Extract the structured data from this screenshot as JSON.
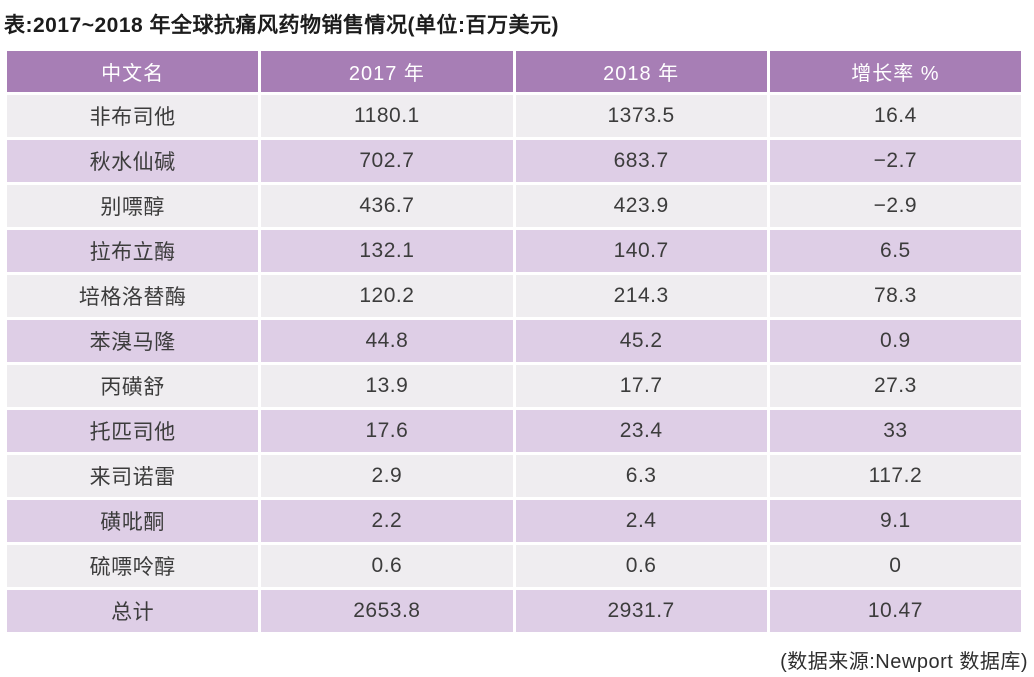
{
  "title": "表:2017~2018 年全球抗痛风药物销售情况(单位:百万美元)",
  "footer": "(数据来源:Newport 数据库)",
  "table": {
    "headers": [
      "中文名",
      "2017 年",
      "2018 年",
      "增长率 %"
    ],
    "rows": [
      [
        "非布司他",
        "1180.1",
        "1373.5",
        "16.4"
      ],
      [
        "秋水仙碱",
        "702.7",
        "683.7",
        "−2.7"
      ],
      [
        "别嘌醇",
        "436.7",
        "423.9",
        "−2.9"
      ],
      [
        "拉布立酶",
        "132.1",
        "140.7",
        "6.5"
      ],
      [
        "培格洛替酶",
        "120.2",
        "214.3",
        "78.3"
      ],
      [
        "苯溴马隆",
        "44.8",
        "45.2",
        "0.9"
      ],
      [
        "丙磺舒",
        "13.9",
        "17.7",
        "27.3"
      ],
      [
        "托匹司他",
        "17.6",
        "23.4",
        "33"
      ],
      [
        "来司诺雷",
        "2.9",
        "6.3",
        "117.2"
      ],
      [
        "磺吡酮",
        "2.2",
        "2.4",
        "9.1"
      ],
      [
        "硫嘌呤醇",
        "0.6",
        "0.6",
        "0"
      ],
      [
        "总计",
        "2653.8",
        "2931.7",
        "10.47"
      ]
    ]
  },
  "colors": {
    "header_bg": "#a77eb5",
    "header_text": "#ffffff",
    "row_light_bg": "#efedf0",
    "row_purple_bg": "#decee6",
    "cell_text": "#3c3c3c",
    "title_text": "#1c1c1c"
  },
  "chart_data": {
    "type": "table",
    "title": "表:2017~2018 年全球抗痛风药物销售情况(单位:百万美元)",
    "unit": "百万美元",
    "columns": [
      "中文名",
      "2017 年",
      "2018 年",
      "增长率 %"
    ],
    "rows": [
      {
        "name": "非布司他",
        "y2017": 1180.1,
        "y2018": 1373.5,
        "growth_pct": 16.4
      },
      {
        "name": "秋水仙碱",
        "y2017": 702.7,
        "y2018": 683.7,
        "growth_pct": -2.7
      },
      {
        "name": "别嘌醇",
        "y2017": 436.7,
        "y2018": 423.9,
        "growth_pct": -2.9
      },
      {
        "name": "拉布立酶",
        "y2017": 132.1,
        "y2018": 140.7,
        "growth_pct": 6.5
      },
      {
        "name": "培格洛替酶",
        "y2017": 120.2,
        "y2018": 214.3,
        "growth_pct": 78.3
      },
      {
        "name": "苯溴马隆",
        "y2017": 44.8,
        "y2018": 45.2,
        "growth_pct": 0.9
      },
      {
        "name": "丙磺舒",
        "y2017": 13.9,
        "y2018": 17.7,
        "growth_pct": 27.3
      },
      {
        "name": "托匹司他",
        "y2017": 17.6,
        "y2018": 23.4,
        "growth_pct": 33
      },
      {
        "name": "来司诺雷",
        "y2017": 2.9,
        "y2018": 6.3,
        "growth_pct": 117.2
      },
      {
        "name": "磺吡酮",
        "y2017": 2.2,
        "y2018": 2.4,
        "growth_pct": 9.1
      },
      {
        "name": "硫嘌呤醇",
        "y2017": 0.6,
        "y2018": 0.6,
        "growth_pct": 0
      },
      {
        "name": "总计",
        "y2017": 2653.8,
        "y2018": 2931.7,
        "growth_pct": 10.47
      }
    ],
    "source": "(数据来源:Newport 数据库)"
  }
}
